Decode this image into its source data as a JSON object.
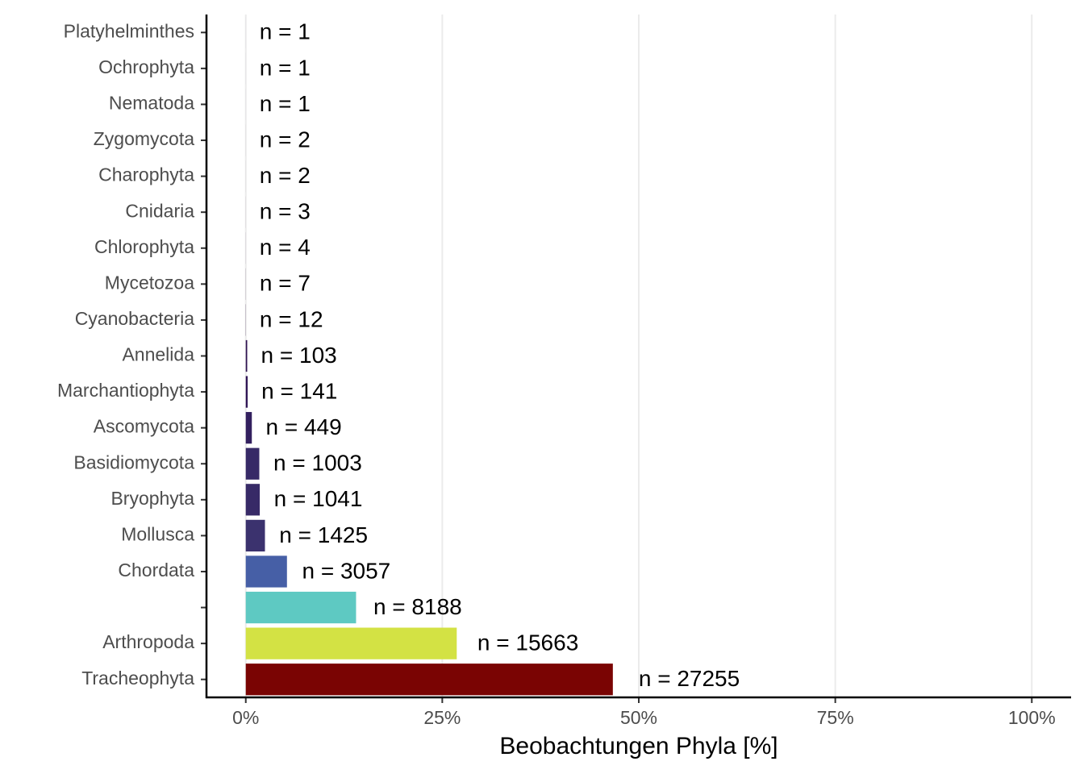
{
  "chart_data": {
    "type": "barh",
    "x_label": "Beobachtungen Phyla [%]",
    "categories": [
      "Platyhelminthes",
      "Ochrophyta",
      "Nematoda",
      "Zygomycota",
      "Charophyta",
      "Cnidaria",
      "Chlorophyta",
      "Mycetozoa",
      "Cyanobacteria",
      "Annelida",
      "Marchantiophyta",
      "Ascomycota",
      "Basidiomycota",
      "Bryophyta",
      "Mollusca",
      "Chordata",
      null,
      "Arthropoda",
      "Tracheophyta"
    ],
    "values": [
      0.002,
      0.002,
      0.002,
      0.003,
      0.003,
      0.005,
      0.007,
      0.012,
      0.02,
      0.18,
      0.24,
      0.77,
      1.72,
      1.78,
      2.44,
      5.24,
      14.03,
      26.84,
      46.7
    ],
    "annotations": [
      "n = 1",
      "n = 1",
      "n = 1",
      "n = 2",
      "n = 2",
      "n = 3",
      "n = 4",
      "n = 7",
      "n = 12",
      "n = 103",
      "n = 141",
      "n = 449",
      "n = 1003",
      "n = 1041",
      "n = 1425",
      "n = 3057",
      "n = 8188",
      "n = 15663",
      "n = 27255"
    ],
    "colors": [
      "#2a0b3a",
      "#2a0b3a",
      "#2a0b3a",
      "#2a0b3a",
      "#2a0b3a",
      "#2a0b3a",
      "#2b0d3e",
      "#2b0d3e",
      "#2d1045",
      "#2f1350",
      "#301656",
      "#33205f",
      "#372a67",
      "#372a67",
      "#3b326e",
      "#465fa6",
      "#5ec9c2",
      "#d3e244",
      "#7a0403"
    ],
    "xlim": [
      -5,
      105
    ],
    "xticks": [
      {
        "value": 0,
        "label": "0%"
      },
      {
        "value": 25,
        "label": "25%"
      },
      {
        "value": 50,
        "label": "50%"
      },
      {
        "value": 75,
        "label": "75%"
      },
      {
        "value": 100,
        "label": "100%"
      }
    ],
    "grid": true
  }
}
